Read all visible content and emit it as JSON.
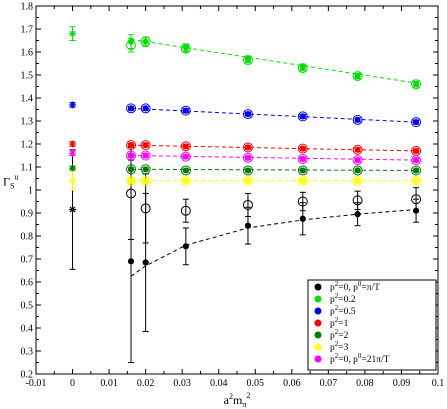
{
  "chart_data": {
    "type": "scatter",
    "xlabel_base": "a",
    "xlabel_sup1": "2",
    "xlabel_mid": "m",
    "xlabel_sub": "π",
    "xlabel_sup2": "2",
    "ylabel_base": "Γ",
    "ylabel_sub": "S",
    "ylabel_sup": "u",
    "xlim": [
      -0.01,
      0.1
    ],
    "ylim": [
      0.2,
      1.8
    ],
    "xticks": [
      "-0.01",
      "0",
      "0.01",
      "0.02",
      "0.03",
      "0.04",
      "0.05",
      "0.06",
      "0.07",
      "0.08",
      "0.09",
      "0.1"
    ],
    "xtick_values": [
      -0.01,
      0,
      0.01,
      0.02,
      0.03,
      0.04,
      0.05,
      0.06,
      0.07,
      0.08,
      0.09,
      0.1
    ],
    "yticks": [
      "0.2",
      "0.3",
      "0.4",
      "0.5",
      "0.6",
      "0.7",
      "0.8",
      "0.9",
      "1",
      "1.1",
      "1.2",
      "1.3",
      "1.4",
      "1.5",
      "1.6",
      "1.7",
      "1.8"
    ],
    "ytick_values": [
      0.2,
      0.3,
      0.4,
      0.5,
      0.6,
      0.7,
      0.8,
      0.9,
      1.0,
      1.1,
      1.2,
      1.3,
      1.4,
      1.5,
      1.6,
      1.7,
      1.8
    ],
    "x": [
      0.016,
      0.02,
      0.031,
      0.048,
      0.063,
      0.078,
      0.094
    ],
    "legend_position": "bottom-right",
    "series": [
      {
        "legend_main": "p",
        "legend_sup": "2",
        "legend_rest": "=0, p",
        "legend_sup2": "0",
        "legend_tail": "=π/T",
        "color": "#000000",
        "filled": [
          0.69,
          0.685,
          0.755,
          0.845,
          0.875,
          0.895,
          0.91
        ],
        "filled_err": [
          0.44,
          0.3,
          0.08,
          0.08,
          0.07,
          0.05,
          0.05
        ],
        "open": [
          0.985,
          0.92,
          0.91,
          0.935,
          0.95,
          0.955,
          0.96
        ],
        "open_err": [
          0.2,
          0.15,
          0.05,
          0.05,
          0.04,
          0.04,
          0.05
        ],
        "fit": [
          [
            0.016,
            0.625
          ],
          [
            0.02,
            0.67
          ],
          [
            0.031,
            0.76
          ],
          [
            0.048,
            0.835
          ],
          [
            0.063,
            0.87
          ],
          [
            0.078,
            0.895
          ],
          [
            0.094,
            0.915
          ]
        ],
        "chiral": 0.915,
        "chiral_err": 0.26,
        "chiral_marker": "star"
      },
      {
        "legend_main": "p",
        "legend_sup": "2",
        "legend_rest": "=0.2",
        "color": "#00e000",
        "filled": [
          1.645,
          1.645,
          1.62,
          1.57,
          1.535,
          1.495,
          1.46
        ],
        "filled_err": [
          0.03,
          0.02,
          0.015,
          0.012,
          0.012,
          0.012,
          0.012
        ],
        "open": [
          1.63,
          1.645,
          1.615,
          1.565,
          1.53,
          1.495,
          1.46
        ],
        "open_err": [
          0.03,
          0.02,
          0.015,
          0.012,
          0.012,
          0.012,
          0.012
        ],
        "fit": [
          [
            0.016,
            1.655
          ],
          [
            0.094,
            1.465
          ]
        ],
        "chiral": 1.68,
        "chiral_err": 0.03,
        "chiral_marker": "star"
      },
      {
        "legend_main": "p",
        "legend_sup": "2",
        "legend_rest": "=0.5",
        "color": "#0000ee",
        "filled": [
          1.355,
          1.355,
          1.345,
          1.33,
          1.32,
          1.305,
          1.295
        ],
        "filled_err": [
          0.008,
          0.008,
          0.008,
          0.008,
          0.008,
          0.008,
          0.008
        ],
        "open": [
          1.355,
          1.355,
          1.345,
          1.33,
          1.32,
          1.305,
          1.295
        ],
        "open_err": [
          0.008,
          0.008,
          0.008,
          0.008,
          0.008,
          0.008,
          0.008
        ],
        "fit": [
          [
            0.016,
            1.355
          ],
          [
            0.094,
            1.295
          ]
        ],
        "chiral": 1.37,
        "chiral_err": 0.01,
        "chiral_marker": "star"
      },
      {
        "legend_main": "p",
        "legend_sup": "2",
        "legend_rest": "=1",
        "color": "#ff0000",
        "filled": [
          1.195,
          1.195,
          1.19,
          1.185,
          1.18,
          1.175,
          1.17
        ],
        "filled_err": [
          0.008,
          0.008,
          0.008,
          0.008,
          0.008,
          0.008,
          0.008
        ],
        "open": [
          1.195,
          1.195,
          1.19,
          1.185,
          1.18,
          1.175,
          1.17
        ],
        "open_err": [
          0.008,
          0.008,
          0.008,
          0.008,
          0.008,
          0.008,
          0.008
        ],
        "fit": [
          [
            0.016,
            1.195
          ],
          [
            0.094,
            1.17
          ]
        ],
        "chiral": 1.2,
        "chiral_err": 0.01,
        "chiral_marker": "star"
      },
      {
        "legend_main": "p",
        "legend_sup": "2",
        "legend_rest": "=2",
        "color": "#007a00",
        "filled": [
          1.09,
          1.09,
          1.085,
          1.085,
          1.085,
          1.085,
          1.085
        ],
        "filled_err": [
          0.006,
          0.006,
          0.006,
          0.006,
          0.006,
          0.006,
          0.006
        ],
        "open": [
          1.09,
          1.09,
          1.085,
          1.085,
          1.085,
          1.085,
          1.085
        ],
        "open_err": [
          0.006,
          0.006,
          0.006,
          0.006,
          0.006,
          0.006,
          0.006
        ],
        "fit": [
          [
            0.016,
            1.09
          ],
          [
            0.094,
            1.085
          ]
        ],
        "chiral": 1.095,
        "chiral_err": 0.008,
        "chiral_marker": "star"
      },
      {
        "legend_main": "p",
        "legend_sup": "2",
        "legend_rest": "=3",
        "color": "#ffff00",
        "filled": [
          1.04,
          1.04,
          1.04,
          1.04,
          1.04,
          1.04,
          1.04
        ],
        "filled_err": [
          0.008,
          0.008,
          0.008,
          0.008,
          0.008,
          0.008,
          0.008
        ],
        "open": [
          1.04,
          1.04,
          1.04,
          1.04,
          1.04,
          1.04,
          1.04
        ],
        "open_err": [
          0.008,
          0.008,
          0.008,
          0.008,
          0.008,
          0.008,
          0.008
        ],
        "fit": [
          [
            0.016,
            1.04
          ],
          [
            0.094,
            1.04
          ]
        ],
        "chiral": 1.04,
        "chiral_err": 0.04,
        "chiral_marker": "star"
      },
      {
        "legend_main": "p",
        "legend_sup": "2",
        "legend_rest": "=0, p",
        "legend_sup2": "0",
        "legend_tail": "=21π/T",
        "color": "#ff00ff",
        "filled": [
          1.15,
          1.15,
          1.145,
          1.14,
          1.135,
          1.13,
          1.13
        ],
        "filled_err": [
          0.008,
          0.008,
          0.008,
          0.008,
          0.008,
          0.008,
          0.008
        ],
        "open": [
          1.15,
          1.15,
          1.145,
          1.14,
          1.135,
          1.13,
          1.13
        ],
        "open_err": [
          0.008,
          0.008,
          0.008,
          0.008,
          0.008,
          0.008,
          0.008
        ],
        "fit": [
          [
            0.016,
            1.15
          ],
          [
            0.094,
            1.13
          ]
        ],
        "chiral": 1.16,
        "chiral_err": 0.01,
        "chiral_marker": "star"
      }
    ]
  }
}
